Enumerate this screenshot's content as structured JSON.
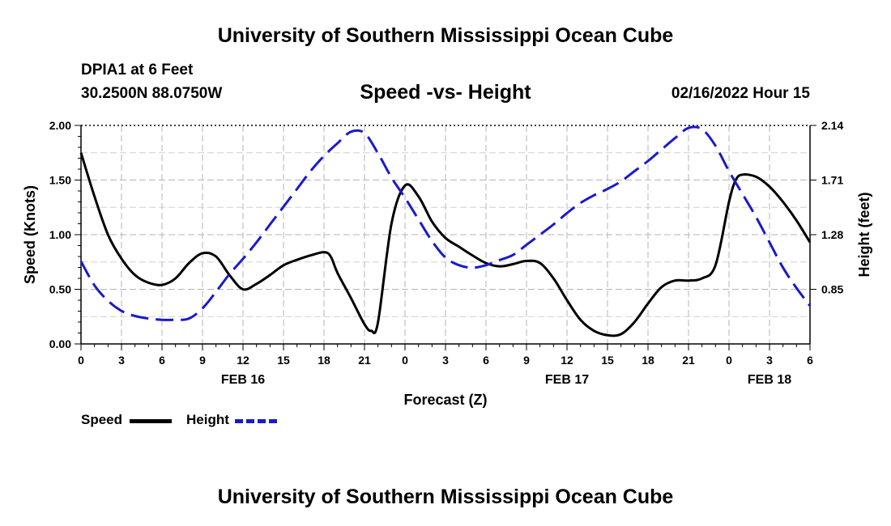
{
  "header": {
    "title": "University of Southern Mississippi Ocean Cube",
    "station": "DPIA1 at 6 Feet",
    "coords": "30.2500N  88.0750W",
    "datetime": "02/16/2022 Hour 15"
  },
  "footer": {
    "title": "University of Southern Mississippi Ocean Cube"
  },
  "legend": {
    "speed": "Speed",
    "height": "Height"
  },
  "colors": {
    "speed": "#000000",
    "height": "#1a1acc",
    "grid": "#b4b4b4"
  },
  "chart_data": {
    "type": "line",
    "title": "Speed -vs- Height",
    "xlabel": "Forecast (Z)",
    "ylabel": "Speed (Knots)",
    "y2label": "Height (feet)",
    "x_range": [
      0,
      54
    ],
    "x_ticks": [
      0,
      3,
      6,
      9,
      12,
      15,
      18,
      21,
      24,
      27,
      30,
      33,
      36,
      39,
      42,
      45,
      48,
      51,
      54
    ],
    "x_tick_labels": [
      "0",
      "3",
      "6",
      "9",
      "12",
      "15",
      "18",
      "21",
      "0",
      "3",
      "6",
      "9",
      "12",
      "15",
      "18",
      "21",
      "0",
      "3",
      "6"
    ],
    "day_labels": [
      {
        "x": 12,
        "label": "FEB 16"
      },
      {
        "x": 36,
        "label": "FEB 17"
      },
      {
        "x": 51,
        "label": "FEB 18"
      }
    ],
    "ylim": [
      0,
      2.0
    ],
    "y_ticks": [
      0,
      0.5,
      1.0,
      1.5,
      2.0
    ],
    "y_tick_labels": [
      "0.00",
      "0.50",
      "1.00",
      "1.50",
      "2.00"
    ],
    "y2lim": [
      0.42,
      2.14
    ],
    "y2_ticks": [
      0.85,
      1.28,
      1.71,
      2.14
    ],
    "y2_tick_labels": [
      "0.85",
      "1.28",
      "1.71",
      "2.14"
    ],
    "series": [
      {
        "name": "Speed",
        "axis": "left",
        "x": [
          0,
          1,
          2,
          3,
          4,
          5,
          6,
          7,
          8,
          9,
          10,
          11,
          12,
          13,
          14,
          15,
          16,
          17,
          18,
          18.5,
          19,
          20,
          21,
          21.5,
          22,
          23,
          24,
          25,
          26,
          27,
          28,
          29,
          30,
          31,
          32,
          33,
          34,
          35,
          36,
          37,
          38,
          39,
          40,
          41,
          42,
          43,
          44,
          45,
          46,
          47,
          48,
          48.5,
          49,
          50,
          51,
          52,
          53,
          54
        ],
        "values": [
          1.75,
          1.35,
          1.0,
          0.78,
          0.63,
          0.56,
          0.54,
          0.6,
          0.74,
          0.83,
          0.8,
          0.63,
          0.5,
          0.55,
          0.63,
          0.72,
          0.77,
          0.81,
          0.84,
          0.8,
          0.65,
          0.42,
          0.18,
          0.12,
          0.2,
          1.1,
          1.45,
          1.35,
          1.12,
          0.97,
          0.89,
          0.81,
          0.74,
          0.71,
          0.73,
          0.76,
          0.74,
          0.6,
          0.4,
          0.22,
          0.12,
          0.08,
          0.09,
          0.2,
          0.37,
          0.52,
          0.58,
          0.58,
          0.6,
          0.72,
          1.3,
          1.5,
          1.55,
          1.53,
          1.44,
          1.3,
          1.13,
          0.93
        ]
      },
      {
        "name": "Height",
        "axis": "right",
        "x": [
          0,
          1,
          2,
          3,
          4,
          5,
          6,
          7,
          8,
          9,
          10,
          11,
          12,
          13,
          14,
          15,
          16,
          17,
          18,
          19,
          20,
          21,
          22,
          23,
          24,
          25,
          26,
          27,
          28,
          29,
          30,
          31,
          32,
          33,
          34,
          35,
          36,
          37,
          38,
          39,
          40,
          41,
          42,
          43,
          44,
          45,
          46,
          47,
          48,
          49,
          50,
          51,
          52,
          53,
          54
        ],
        "values": [
          1.07,
          0.88,
          0.76,
          0.68,
          0.64,
          0.62,
          0.61,
          0.61,
          0.62,
          0.7,
          0.83,
          0.97,
          1.09,
          1.22,
          1.36,
          1.5,
          1.64,
          1.78,
          1.9,
          2.0,
          2.09,
          2.08,
          1.92,
          1.73,
          1.57,
          1.4,
          1.23,
          1.1,
          1.04,
          1.02,
          1.04,
          1.08,
          1.12,
          1.2,
          1.28,
          1.36,
          1.45,
          1.53,
          1.59,
          1.64,
          1.7,
          1.78,
          1.86,
          1.95,
          2.04,
          2.12,
          2.11,
          1.98,
          1.78,
          1.6,
          1.42,
          1.22,
          1.02,
          0.86,
          0.72
        ]
      }
    ]
  }
}
